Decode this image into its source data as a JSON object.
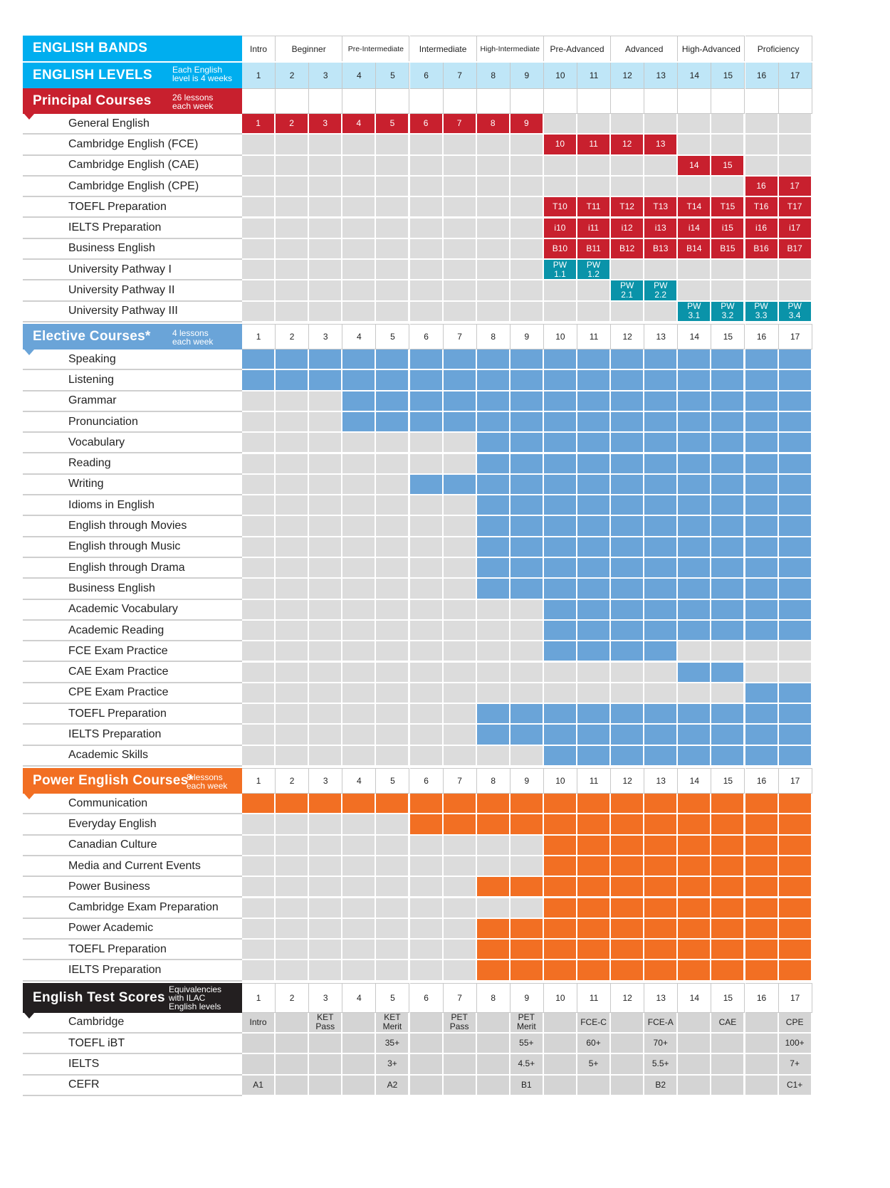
{
  "colors": {
    "sky": "#00aeef",
    "sky_light": "#bfe6f7",
    "red": "#c8202e",
    "blue": "#6aa4d8",
    "teal": "#0a93a9",
    "orange": "#f26f23",
    "gray": "#dcdcdc",
    "black": "#231f20"
  },
  "bands": {
    "title": "ENGLISH BANDS",
    "items": [
      {
        "label": "Intro",
        "span": 1
      },
      {
        "label": "Beginner",
        "span": 2
      },
      {
        "label": "Pre-Intermediate",
        "span": 2
      },
      {
        "label": "Intermediate",
        "span": 2
      },
      {
        "label": "High-Intermediate",
        "span": 2
      },
      {
        "label": "Pre-Advanced",
        "span": 2
      },
      {
        "label": "Advanced",
        "span": 2
      },
      {
        "label": "High-Advanced",
        "span": 2
      },
      {
        "label": "Proficiency",
        "span": 2
      }
    ]
  },
  "levels": {
    "title": "ENGLISH LEVELS",
    "note": "Each English\nlevel is 4 weeks",
    "numbers": [
      "1",
      "2",
      "3",
      "4",
      "5",
      "6",
      "7",
      "8",
      "9",
      "10",
      "11",
      "12",
      "13",
      "14",
      "15",
      "16",
      "17"
    ]
  },
  "sections": [
    {
      "id": "principal",
      "title": "Principal Courses",
      "note": "26 lessons\neach week",
      "color": "red",
      "show_numbers": false,
      "rows": [
        {
          "label": "General English",
          "cells": [
            {
              "from": 1,
              "to": 9,
              "color": "red",
              "labels": [
                "1",
                "2",
                "3",
                "4",
                "5",
                "6",
                "7",
                "8",
                "9"
              ]
            }
          ]
        },
        {
          "label": "Cambridge English (FCE)",
          "cells": [
            {
              "from": 10,
              "to": 13,
              "color": "red",
              "labels": [
                "10",
                "11",
                "12",
                "13"
              ]
            }
          ]
        },
        {
          "label": "Cambridge English (CAE)",
          "cells": [
            {
              "from": 14,
              "to": 15,
              "color": "red",
              "labels": [
                "14",
                "15"
              ]
            }
          ]
        },
        {
          "label": "Cambridge English (CPE)",
          "cells": [
            {
              "from": 16,
              "to": 17,
              "color": "red",
              "labels": [
                "16",
                "17"
              ]
            }
          ]
        },
        {
          "label": "TOEFL Preparation",
          "cells": [
            {
              "from": 10,
              "to": 17,
              "color": "red",
              "labels": [
                "T10",
                "T11",
                "T12",
                "T13",
                "T14",
                "T15",
                "T16",
                "T17"
              ]
            }
          ]
        },
        {
          "label": "IELTS Preparation",
          "cells": [
            {
              "from": 10,
              "to": 17,
              "color": "red",
              "labels": [
                "i10",
                "i11",
                "i12",
                "i13",
                "i14",
                "i15",
                "i16",
                "i17"
              ]
            }
          ]
        },
        {
          "label": "Business English",
          "cells": [
            {
              "from": 10,
              "to": 17,
              "color": "red",
              "labels": [
                "B10",
                "B11",
                "B12",
                "B13",
                "B14",
                "B15",
                "B16",
                "B17"
              ]
            }
          ]
        },
        {
          "label": "University Pathway I",
          "cells": [
            {
              "from": 10,
              "to": 11,
              "color": "teal",
              "labels": [
                "PW\n1.1",
                "PW\n1.2"
              ]
            }
          ]
        },
        {
          "label": "University Pathway II",
          "cells": [
            {
              "from": 12,
              "to": 13,
              "color": "teal",
              "labels": [
                "PW\n2.1",
                "PW\n2.2"
              ]
            }
          ]
        },
        {
          "label": "University Pathway III",
          "cells": [
            {
              "from": 14,
              "to": 17,
              "color": "teal",
              "labels": [
                "PW\n3.1",
                "PW\n3.2",
                "PW\n3.3",
                "PW\n3.4"
              ]
            }
          ]
        }
      ]
    },
    {
      "id": "elective",
      "title": "Elective Courses*",
      "note": "4 lessons\neach week",
      "color": "blue",
      "show_numbers": true,
      "rows": [
        {
          "label": "Speaking",
          "cells": [
            {
              "from": 1,
              "to": 17,
              "color": "blue"
            }
          ]
        },
        {
          "label": "Listening",
          "cells": [
            {
              "from": 1,
              "to": 17,
              "color": "blue"
            }
          ]
        },
        {
          "label": "Grammar",
          "cells": [
            {
              "from": 4,
              "to": 17,
              "color": "blue"
            }
          ]
        },
        {
          "label": "Pronunciation",
          "cells": [
            {
              "from": 4,
              "to": 17,
              "color": "blue"
            }
          ]
        },
        {
          "label": "Vocabulary",
          "cells": [
            {
              "from": 8,
              "to": 17,
              "color": "blue"
            }
          ]
        },
        {
          "label": "Reading",
          "cells": [
            {
              "from": 8,
              "to": 17,
              "color": "blue"
            }
          ]
        },
        {
          "label": "Writing",
          "cells": [
            {
              "from": 6,
              "to": 17,
              "color": "blue"
            }
          ]
        },
        {
          "label": "Idioms in English",
          "cells": [
            {
              "from": 8,
              "to": 17,
              "color": "blue"
            }
          ]
        },
        {
          "label": "English through Movies",
          "cells": [
            {
              "from": 8,
              "to": 17,
              "color": "blue"
            }
          ]
        },
        {
          "label": "English through Music",
          "cells": [
            {
              "from": 8,
              "to": 17,
              "color": "blue"
            }
          ]
        },
        {
          "label": "English through Drama",
          "cells": [
            {
              "from": 8,
              "to": 17,
              "color": "blue"
            }
          ]
        },
        {
          "label": "Business English",
          "cells": [
            {
              "from": 8,
              "to": 17,
              "color": "blue"
            }
          ]
        },
        {
          "label": "Academic Vocabulary",
          "cells": [
            {
              "from": 10,
              "to": 17,
              "color": "blue"
            }
          ]
        },
        {
          "label": "Academic Reading",
          "cells": [
            {
              "from": 10,
              "to": 17,
              "color": "blue"
            }
          ]
        },
        {
          "label": "FCE Exam Practice",
          "cells": [
            {
              "from": 10,
              "to": 13,
              "color": "blue"
            }
          ]
        },
        {
          "label": "CAE Exam Practice",
          "cells": [
            {
              "from": 14,
              "to": 15,
              "color": "blue"
            }
          ]
        },
        {
          "label": "CPE Exam Practice",
          "cells": [
            {
              "from": 16,
              "to": 17,
              "color": "blue"
            }
          ]
        },
        {
          "label": "TOEFL Preparation",
          "cells": [
            {
              "from": 8,
              "to": 17,
              "color": "blue"
            }
          ]
        },
        {
          "label": "IELTS Preparation",
          "cells": [
            {
              "from": 8,
              "to": 17,
              "color": "blue"
            }
          ]
        },
        {
          "label": "Academic Skills",
          "cells": [
            {
              "from": 10,
              "to": 17,
              "color": "blue"
            }
          ]
        }
      ]
    },
    {
      "id": "power",
      "title": "Power English Courses*",
      "note": "8 lessons\neach week",
      "color": "orange",
      "show_numbers": true,
      "rows": [
        {
          "label": "Communication",
          "cells": [
            {
              "from": 1,
              "to": 17,
              "color": "orange"
            }
          ]
        },
        {
          "label": "Everyday English",
          "cells": [
            {
              "from": 6,
              "to": 17,
              "color": "orange"
            }
          ]
        },
        {
          "label": "Canadian Culture",
          "cells": [
            {
              "from": 10,
              "to": 17,
              "color": "orange"
            }
          ]
        },
        {
          "label": "Media and Current Events",
          "cells": [
            {
              "from": 10,
              "to": 17,
              "color": "orange"
            }
          ]
        },
        {
          "label": "Power Business",
          "cells": [
            {
              "from": 8,
              "to": 17,
              "color": "orange"
            }
          ]
        },
        {
          "label": "Cambridge Exam Preparation",
          "cells": [
            {
              "from": 10,
              "to": 17,
              "color": "orange"
            }
          ]
        },
        {
          "label": "Power Academic",
          "cells": [
            {
              "from": 8,
              "to": 17,
              "color": "orange"
            }
          ]
        },
        {
          "label": "TOEFL Preparation",
          "cells": [
            {
              "from": 8,
              "to": 17,
              "color": "orange"
            }
          ]
        },
        {
          "label": "IELTS Preparation",
          "cells": [
            {
              "from": 8,
              "to": 17,
              "color": "orange"
            }
          ]
        }
      ]
    },
    {
      "id": "tests",
      "title": "English Test Scores",
      "note": "Equivalencies\nwith ILAC\nEnglish levels",
      "color": "black",
      "show_numbers": true,
      "rows": [
        {
          "label": "Cambridge",
          "text": {
            "1": "Intro",
            "3": "KET\nPass",
            "5": "KET\nMerit",
            "7": "PET\nPass",
            "9": "PET\nMerit",
            "11": "FCE-C",
            "13": "FCE-A",
            "15": "CAE",
            "17": "CPE"
          }
        },
        {
          "label": "TOEFL iBT",
          "text": {
            "5": "35+",
            "9": "55+",
            "11": "60+",
            "13": "70+",
            "17": "100+"
          }
        },
        {
          "label": "IELTS",
          "text": {
            "5": "3+",
            "9": "4.5+",
            "11": "5+",
            "13": "5.5+",
            "17": "7+"
          }
        },
        {
          "label": "CEFR",
          "text": {
            "1": "A1",
            "5": "A2",
            "9": "B1",
            "13": "B2",
            "17": "C1+"
          }
        }
      ]
    }
  ]
}
